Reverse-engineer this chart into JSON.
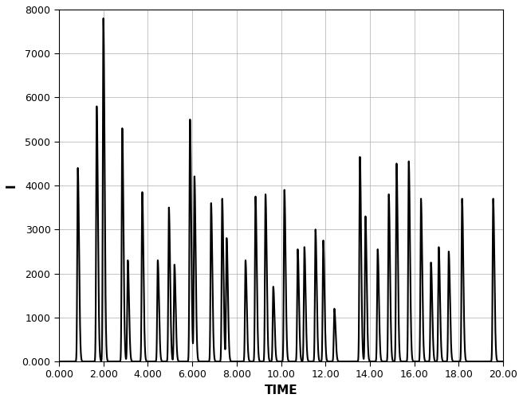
{
  "title": "",
  "xlabel": "TIME",
  "ylabel": "I",
  "xlim": [
    0.0,
    20.0
  ],
  "ylim": [
    0.0,
    8000.0
  ],
  "xticks": [
    0.0,
    2.0,
    4.0,
    6.0,
    8.0,
    10.0,
    12.0,
    14.0,
    16.0,
    18.0,
    20.0
  ],
  "xtick_labels": [
    "0.000",
    "2.000",
    "4.000",
    "6.000",
    "8.000",
    "10.00",
    "12.00",
    "14.00",
    "16.00",
    "18.00",
    "20.00"
  ],
  "yticks": [
    0,
    1000,
    2000,
    3000,
    4000,
    5000,
    6000,
    7000,
    8000
  ],
  "ytick_labels": [
    "0.000",
    "1000",
    "2000",
    "3000",
    "4000",
    "5000",
    "6000",
    "7000",
    "8000"
  ],
  "line_color": "#000000",
  "line_width": 1.5,
  "bg_color": "#ffffff",
  "grid_color": "#aaaaaa",
  "grid_alpha": 0.7,
  "spike_data": [
    [
      0.85,
      4400
    ],
    [
      1.7,
      5800
    ],
    [
      2.0,
      7800
    ],
    [
      2.85,
      5300
    ],
    [
      3.1,
      2300
    ],
    [
      3.75,
      3850
    ],
    [
      4.45,
      2300
    ],
    [
      4.95,
      3500
    ],
    [
      5.2,
      2200
    ],
    [
      5.9,
      5500
    ],
    [
      6.1,
      4200
    ],
    [
      6.85,
      3600
    ],
    [
      7.35,
      3700
    ],
    [
      7.55,
      2800
    ],
    [
      8.4,
      2300
    ],
    [
      8.85,
      3750
    ],
    [
      9.3,
      3800
    ],
    [
      9.65,
      1700
    ],
    [
      10.15,
      3900
    ],
    [
      10.75,
      2550
    ],
    [
      11.05,
      2600
    ],
    [
      11.55,
      3000
    ],
    [
      11.9,
      2750
    ],
    [
      12.4,
      1200
    ],
    [
      13.55,
      4650
    ],
    [
      13.8,
      3300
    ],
    [
      14.35,
      2550
    ],
    [
      14.85,
      3800
    ],
    [
      15.2,
      4500
    ],
    [
      15.75,
      4550
    ],
    [
      16.3,
      3700
    ],
    [
      16.75,
      2250
    ],
    [
      17.1,
      2600
    ],
    [
      17.55,
      2500
    ],
    [
      18.15,
      3700
    ],
    [
      19.55,
      3700
    ]
  ]
}
